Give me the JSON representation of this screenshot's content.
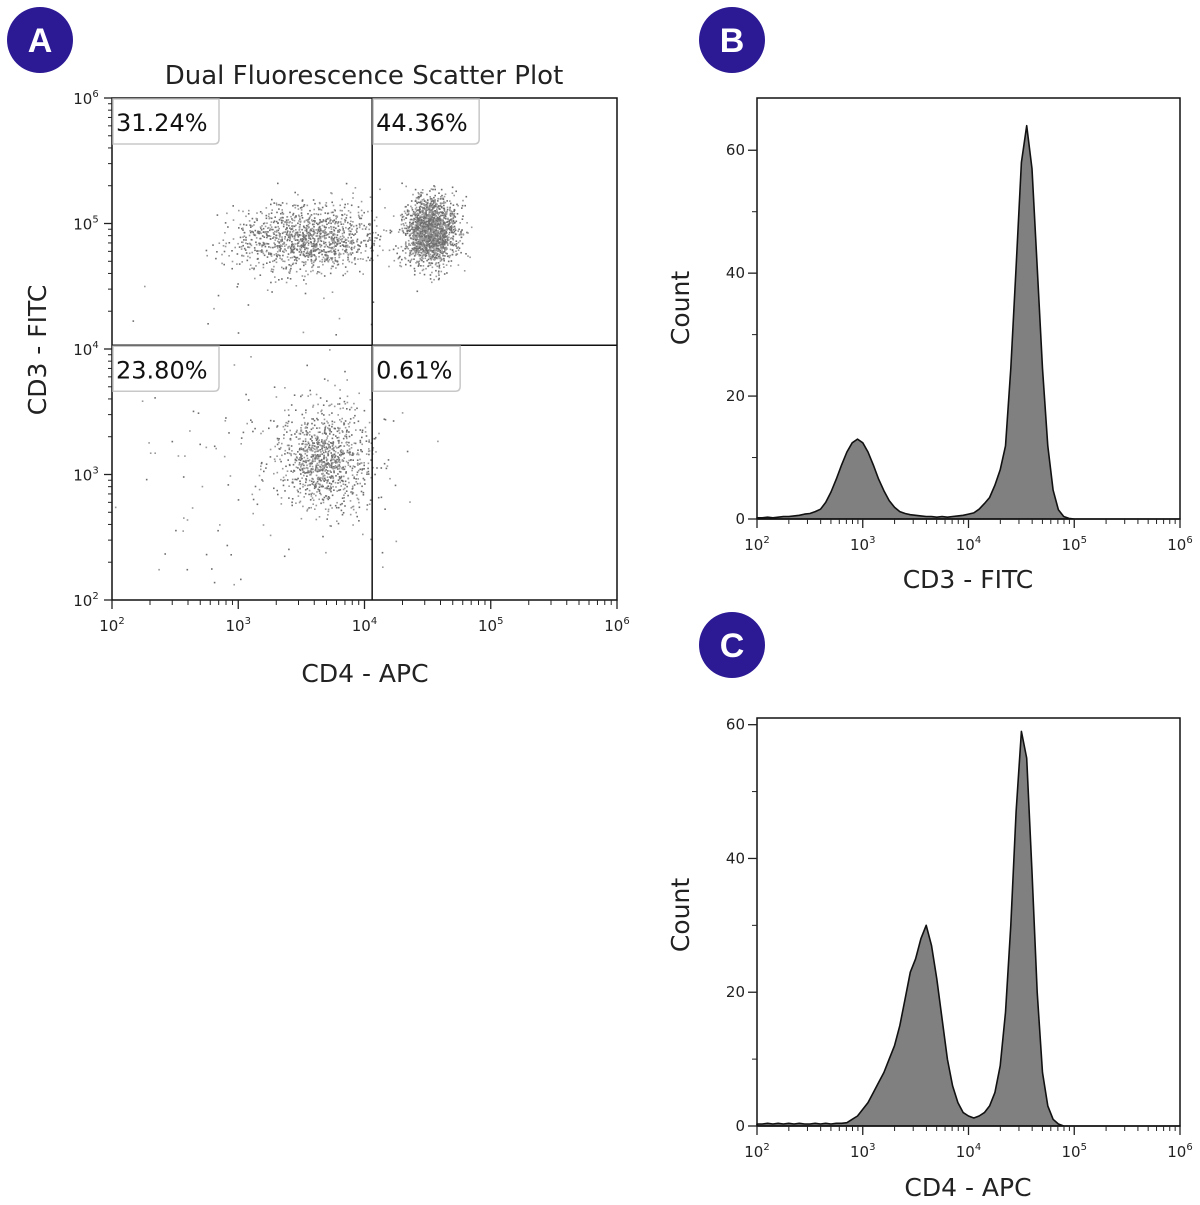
{
  "badge_color": "#2b1a94",
  "chart_data": [
    {
      "panel": "A",
      "type": "scatter",
      "title": "Dual Fluorescence Scatter Plot",
      "xlabel": "CD4 - APC",
      "ylabel": "CD3 - FITC",
      "xscale": "log",
      "yscale": "log",
      "xlim": [
        100,
        1000000
      ],
      "ylim": [
        100,
        1000000
      ],
      "xticks": [
        2,
        3,
        4,
        5,
        6
      ],
      "yticks": [
        2,
        3,
        4,
        5,
        6
      ],
      "point_color": "#7a7a7a",
      "quadrant_gate": {
        "x": 11500,
        "y": 10700
      },
      "quadrant_labels": {
        "upper_left": "31.24%",
        "upper_right": "44.36%",
        "lower_left": "23.80%",
        "lower_right": "0.61%"
      },
      "populations": [
        {
          "center": [
            3500,
            76000
          ],
          "spread_decades": [
            0.28,
            0.14
          ],
          "n": 1300
        },
        {
          "center": [
            33000,
            88000
          ],
          "spread_decades": [
            0.1,
            0.14
          ],
          "n": 1700
        },
        {
          "center": [
            4900,
            1320
          ],
          "spread_decades": [
            0.18,
            0.2
          ],
          "n": 1000
        },
        {
          "center": [
            1500,
            1500
          ],
          "spread_decades": [
            0.55,
            0.55
          ],
          "n": 160
        }
      ]
    },
    {
      "panel": "B",
      "type": "area",
      "xlabel": "CD3 - FITC",
      "ylabel": "Count",
      "xscale": "log",
      "xlim": [
        100,
        1000000
      ],
      "ylim": [
        0,
        68.5
      ],
      "xticks": [
        2,
        3,
        4,
        5,
        6
      ],
      "yticks": [
        0,
        20,
        40,
        60
      ],
      "fill_color": "#808080",
      "x_log10_start": 2.0,
      "x_log10_step": 0.05,
      "counts": [
        0.2,
        0.2,
        0.3,
        0.2,
        0.3,
        0.4,
        0.4,
        0.5,
        0.6,
        0.8,
        0.9,
        1.2,
        1.6,
        2.7,
        4.4,
        6.5,
        8.8,
        10.9,
        12.4,
        13,
        12.4,
        10.9,
        8.8,
        6.5,
        4.6,
        3.0,
        1.9,
        1.2,
        0.9,
        0.7,
        0.6,
        0.5,
        0.4,
        0.4,
        0.3,
        0.4,
        0.3,
        0.4,
        0.5,
        0.6,
        0.8,
        1.0,
        1.6,
        2.5,
        3.5,
        5.5,
        8,
        11.9,
        24.5,
        41,
        58,
        64,
        57,
        41,
        24.5,
        11.9,
        4.7,
        1.5,
        0.4,
        0.1,
        0,
        0,
        0,
        0,
        0,
        0,
        0,
        0,
        0,
        0,
        0,
        0,
        0,
        0,
        0,
        0,
        0,
        0,
        0,
        0,
        0
      ]
    },
    {
      "panel": "C",
      "type": "area",
      "xlabel": "CD4 - APC",
      "ylabel": "Count",
      "xscale": "log",
      "xlim": [
        100,
        1000000
      ],
      "ylim": [
        0,
        61
      ],
      "xticks": [
        2,
        3,
        4,
        5,
        6
      ],
      "yticks": [
        0,
        20,
        40,
        60
      ],
      "fill_color": "#808080",
      "x_log10_start": 2.0,
      "x_log10_step": 0.05,
      "counts": [
        0.3,
        0.3,
        0.4,
        0.3,
        0.4,
        0.3,
        0.4,
        0.3,
        0.4,
        0.3,
        0.3,
        0.4,
        0.3,
        0.4,
        0.3,
        0.4,
        0.4,
        0.5,
        1,
        1.5,
        2.5,
        3.5,
        5,
        6.5,
        8,
        10,
        12,
        15,
        19,
        23,
        25,
        28,
        30,
        27,
        22,
        16,
        10,
        6,
        3.5,
        2,
        1.5,
        1.2,
        1.5,
        2,
        3,
        5,
        9,
        17,
        30,
        47,
        59,
        55,
        38,
        20,
        8,
        3,
        1,
        0.3,
        0,
        0,
        0,
        0,
        0,
        0,
        0,
        0,
        0,
        0,
        0,
        0,
        0,
        0,
        0,
        0,
        0,
        0,
        0,
        0,
        0,
        0,
        0
      ]
    }
  ],
  "panels": {
    "A": {
      "letter": "A"
    },
    "B": {
      "letter": "B"
    },
    "C": {
      "letter": "C"
    }
  }
}
